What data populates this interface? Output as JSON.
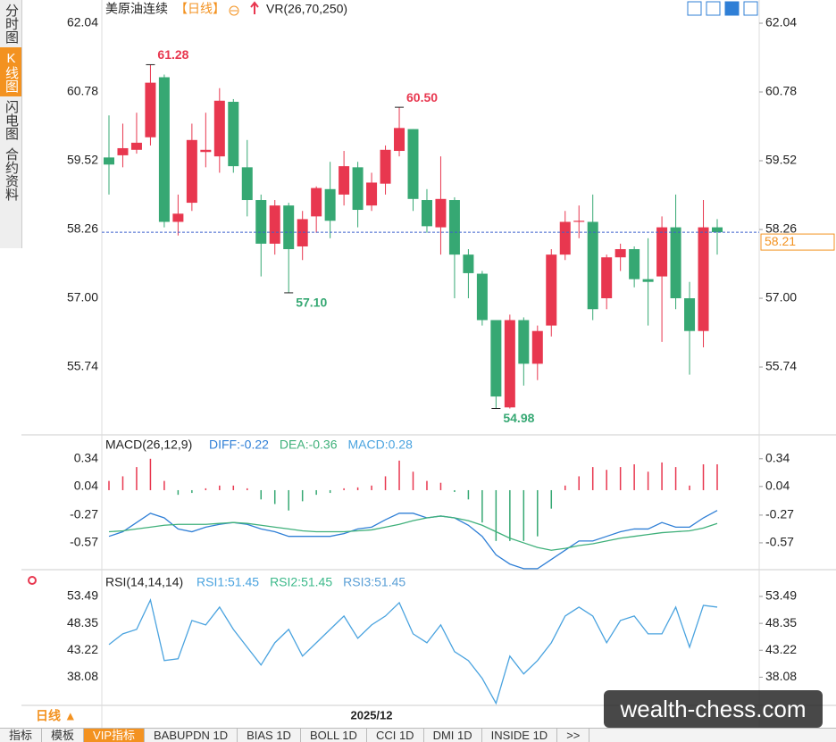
{
  "sidebar": [
    "分时图",
    "K线图",
    "闪电图",
    "合约资料"
  ],
  "header": {
    "symbol": "美原油连续",
    "period": "【日线】",
    "indicator": "VR(26,70,250)"
  },
  "footer": {
    "period": "日线 ▲",
    "date": "2025/12"
  },
  "tabs": [
    "指标",
    "模板",
    "VIP指标",
    "BABUPDN 1D",
    "BIAS 1D",
    "BOLL 1D",
    "CCI 1D",
    "DMI 1D",
    "INSIDE 1D",
    ">>"
  ],
  "watermark": "wealth-chess.com",
  "chart_data": [
    {
      "type": "candlestick",
      "ylim": [
        54.53,
        62.22
      ],
      "yticks": [
        62.04,
        60.78,
        59.52,
        58.26,
        {
          "value": 57,
          "label": "57.00"
        },
        55.74
      ],
      "up_color": "#e8374f",
      "down_color": "#36a873",
      "open": [
        59.58,
        59.62,
        59.72,
        59.95,
        61.05,
        58.4,
        58.75,
        59.68,
        59.6,
        60.6,
        59.4,
        58.8,
        58.0,
        58.7,
        57.95,
        58.5,
        59.0,
        58.9,
        59.4,
        58.7,
        59.1,
        59.7,
        60.1,
        58.8,
        58.3,
        58.8,
        57.8,
        57.45,
        56.6,
        55.0,
        56.6,
        55.8,
        56.5,
        57.8,
        58.4,
        58.4,
        57.0,
        57.75,
        57.9,
        57.35,
        57.4,
        58.3,
        57.0,
        56.4,
        58.3
      ],
      "close": [
        59.45,
        59.75,
        59.85,
        60.95,
        58.4,
        58.55,
        59.9,
        59.72,
        60.62,
        59.42,
        58.8,
        58.0,
        58.7,
        57.9,
        58.45,
        59.02,
        58.42,
        59.42,
        58.62,
        59.12,
        59.72,
        60.12,
        58.82,
        58.32,
        58.82,
        57.8,
        57.46,
        56.6,
        55.2,
        56.6,
        55.8,
        56.4,
        57.8,
        58.4,
        58.42,
        56.8,
        57.75,
        57.9,
        57.35,
        57.3,
        58.3,
        57.0,
        56.4,
        58.3,
        58.21
      ],
      "high": [
        60.35,
        60.2,
        60.4,
        61.28,
        61.1,
        58.9,
        60.2,
        60.4,
        60.85,
        60.65,
        59.9,
        58.9,
        58.8,
        58.75,
        58.6,
        59.05,
        59.5,
        59.7,
        59.5,
        59.3,
        59.8,
        60.5,
        60.1,
        59.0,
        59.6,
        58.85,
        57.9,
        57.5,
        56.6,
        56.7,
        56.65,
        56.5,
        57.9,
        58.6,
        58.7,
        58.9,
        57.8,
        58.0,
        57.95,
        58.1,
        58.5,
        58.9,
        57.3,
        58.8,
        58.45
      ],
      "low": [
        58.9,
        59.4,
        59.65,
        59.8,
        58.3,
        58.15,
        58.6,
        59.4,
        59.3,
        59.3,
        58.5,
        57.4,
        57.8,
        57.1,
        57.7,
        58.2,
        58.1,
        58.7,
        58.3,
        58.6,
        58.9,
        59.6,
        58.6,
        58.2,
        57.8,
        57.0,
        57.0,
        56.5,
        54.98,
        54.98,
        55.4,
        55.5,
        56.3,
        57.7,
        58.1,
        56.6,
        56.8,
        57.5,
        57.2,
        56.5,
        56.2,
        56.8,
        55.6,
        56.1,
        57.8
      ],
      "annotations": [
        {
          "text": "61.28",
          "index": 3,
          "side": "high"
        },
        {
          "text": "60.50",
          "index": 21,
          "side": "high"
        },
        {
          "text": "57.10",
          "index": 13,
          "side": "low"
        },
        {
          "text": "54.98",
          "index": 28,
          "side": "low"
        }
      ],
      "last_price": {
        "value": 58.21,
        "label": "58.21"
      }
    },
    {
      "type": "macd",
      "title": "MACD(26,12,9)",
      "ylim": [
        -0.88,
        0.57
      ],
      "yticks": [
        0.34,
        0.04,
        -0.27,
        -0.57
      ],
      "series": [
        {
          "legend": "DIFF:-0.22",
          "color": "#2f7fd6",
          "values": [
            -0.5,
            -0.45,
            -0.35,
            -0.25,
            -0.3,
            -0.42,
            -0.45,
            -0.4,
            -0.37,
            -0.35,
            -0.37,
            -0.42,
            -0.45,
            -0.5,
            -0.5,
            -0.5,
            -0.5,
            -0.47,
            -0.42,
            -0.4,
            -0.32,
            -0.25,
            -0.25,
            -0.3,
            -0.28,
            -0.3,
            -0.38,
            -0.5,
            -0.7,
            -0.8,
            -0.85,
            -0.85,
            -0.75,
            -0.65,
            -0.55,
            -0.55,
            -0.5,
            -0.45,
            -0.42,
            -0.42,
            -0.35,
            -0.4,
            -0.4,
            -0.3,
            -0.22
          ]
        },
        {
          "legend": "DEA:-0.36",
          "color": "#3fb07a",
          "values": [
            -0.45,
            -0.44,
            -0.42,
            -0.4,
            -0.38,
            -0.37,
            -0.37,
            -0.37,
            -0.36,
            -0.35,
            -0.36,
            -0.38,
            -0.4,
            -0.42,
            -0.44,
            -0.45,
            -0.45,
            -0.45,
            -0.44,
            -0.43,
            -0.4,
            -0.37,
            -0.33,
            -0.3,
            -0.28,
            -0.3,
            -0.33,
            -0.38,
            -0.45,
            -0.52,
            -0.57,
            -0.62,
            -0.65,
            -0.63,
            -0.6,
            -0.58,
            -0.55,
            -0.52,
            -0.5,
            -0.48,
            -0.46,
            -0.45,
            -0.44,
            -0.41,
            -0.36
          ]
        },
        {
          "legend": "MACD:0.28",
          "color": "#4aa3df",
          "values": [
            0.1,
            0.15,
            0.25,
            0.34,
            0.1,
            -0.05,
            -0.03,
            0.02,
            0.05,
            0.05,
            0.02,
            -0.1,
            -0.15,
            -0.22,
            -0.12,
            -0.05,
            -0.03,
            0.02,
            0.03,
            0.05,
            0.15,
            0.32,
            0.2,
            0.1,
            0.08,
            -0.02,
            -0.1,
            -0.35,
            -0.55,
            -0.55,
            -0.55,
            -0.5,
            -0.2,
            0.05,
            0.15,
            0.25,
            0.22,
            0.25,
            0.28,
            0.2,
            0.3,
            0.25,
            0.05,
            0.28,
            0.28
          ]
        }
      ]
    },
    {
      "type": "rsi",
      "title": "RSI(14,14,14)",
      "ylim": [
        32.7,
        57.4
      ],
      "yticks": [
        53.49,
        48.35,
        43.22,
        38.08
      ],
      "legend": [
        {
          "text": "RSI1:51.45",
          "color": "#4aa3df"
        },
        {
          "text": "RSI2:51.45",
          "color": "#3cb98a"
        },
        {
          "text": "RSI3:51.45",
          "color": "#5a9fd6"
        }
      ],
      "series": [
        {
          "color": "#4aa3df",
          "values": [
            44.31,
            46.35,
            47.2,
            52.81,
            41.25,
            41.59,
            48.9,
            48.05,
            51.45,
            47.2,
            43.8,
            40.4,
            44.65,
            47.2,
            42.1,
            44.65,
            47.2,
            49.75,
            45.5,
            48.05,
            49.75,
            52.3,
            46.35,
            44.65,
            48.05,
            42.95,
            41.25,
            37.85,
            33.1,
            42.1,
            38.7,
            41.25,
            44.65,
            49.75,
            51.45,
            49.75,
            44.65,
            48.9,
            49.75,
            46.35,
            46.35,
            51.45,
            43.8,
            51.79,
            51.45
          ]
        }
      ]
    }
  ]
}
